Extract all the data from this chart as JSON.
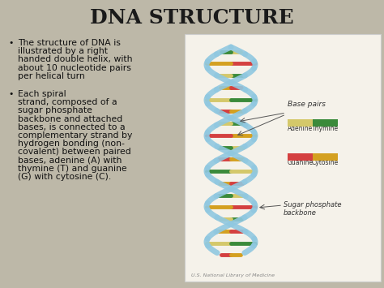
{
  "title": "DNA STRUCTURE",
  "title_fontsize": 18,
  "title_color": "#1a1a1a",
  "background_color": "#bdb8a8",
  "bullet1_lines": [
    "The structure of DNA is",
    "illustrated by a right",
    "handed double helix, with",
    "about 10 nucleotide pairs",
    "per helical turn"
  ],
  "bullet2_lines": [
    "Each spiral",
    "strand, composed of a",
    "sugar phosphate",
    "backbone and attached",
    "bases, is connected to a",
    "complementary strand by",
    "hydrogen bonding (non-",
    "covalent) between paired",
    "bases, adenine (A) with",
    "thymine (T) and guanine",
    "(G) with cytosine (C)."
  ],
  "bullet_fontsize": 7.8,
  "bullet_color": "#111111",
  "image_box_color": "#f5f2ea",
  "image_box_border": "#cccccc",
  "adenine_color": "#d4c86a",
  "thymine_color": "#3a8a3a",
  "guanine_color": "#d44040",
  "cytosine_color": "#d4a020",
  "strand_color": "#90c8e0",
  "label_adenine": "Adenine",
  "label_thymine": "Thymine",
  "label_guanine": "Guanine",
  "label_cytosine": "Cytosine",
  "label_basepairs": "Base pairs",
  "label_sugar": "Sugar phosphate\nbackbone",
  "credit": "U.S. National Library of Medicine"
}
